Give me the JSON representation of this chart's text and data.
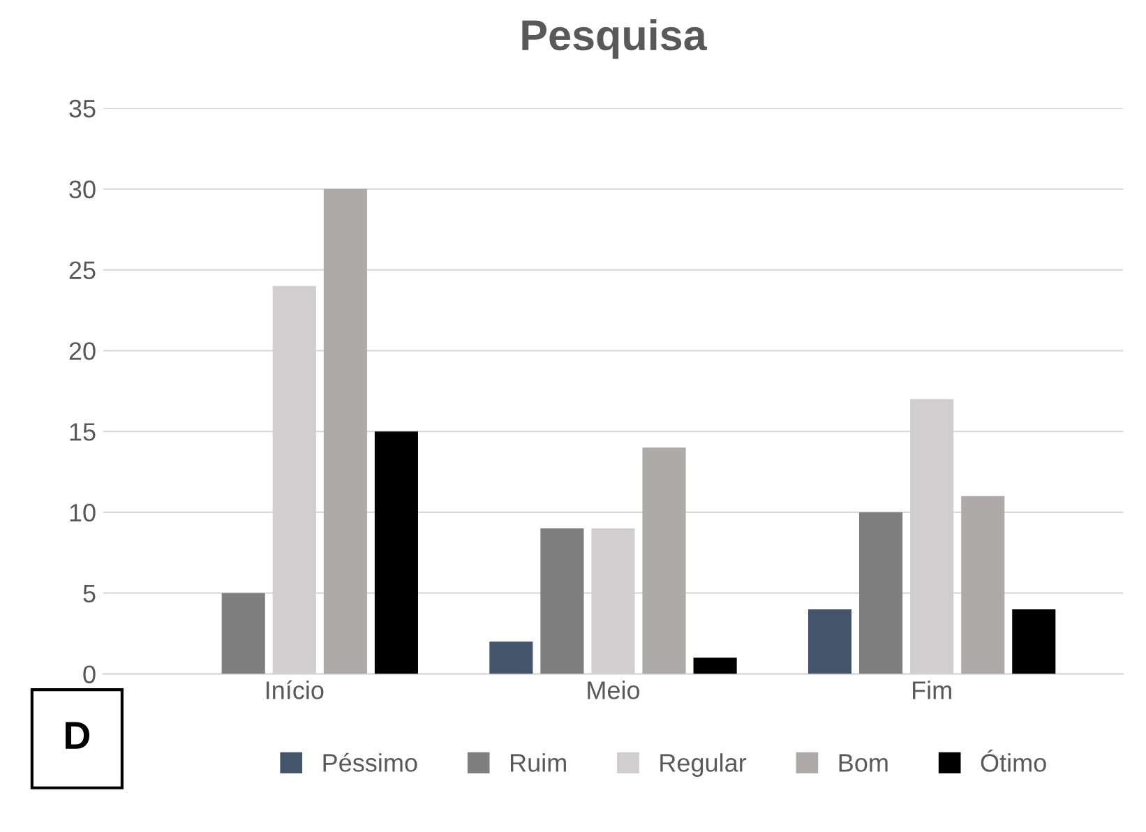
{
  "chart_data": {
    "type": "bar",
    "title": "Pesquisa",
    "categories": [
      "Início",
      "Meio",
      "Fim"
    ],
    "series": [
      {
        "name": "Péssimo",
        "color": "#44546a",
        "values": [
          0,
          2,
          4
        ]
      },
      {
        "name": "Ruim",
        "color": "#7f7f7f",
        "values": [
          5,
          9,
          10
        ]
      },
      {
        "name": "Regular",
        "color": "#d0cece",
        "values": [
          24,
          9,
          17
        ]
      },
      {
        "name": "Bom",
        "color": "#aeaaaa",
        "values": [
          30,
          14,
          11
        ]
      },
      {
        "name": "Ótimo",
        "color": "#000000",
        "values": [
          15,
          1,
          4
        ]
      }
    ],
    "ylim": [
      0,
      35
    ],
    "yticks": [
      0,
      5,
      10,
      15,
      20,
      25,
      30,
      35
    ],
    "grid": "y",
    "legend": "bottom",
    "annotations": [
      "D"
    ]
  }
}
